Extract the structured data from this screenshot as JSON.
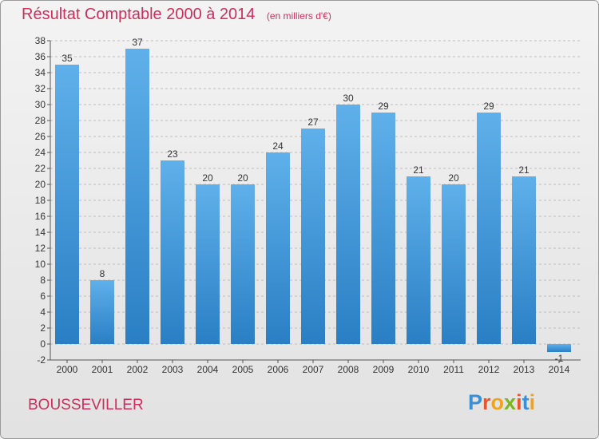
{
  "header": {
    "title": "Résultat Comptable 2000 à 2014",
    "subtitle": "(en milliers d'€)"
  },
  "footer": {
    "commune": "BOUSSEVILLER",
    "logo_text": "Proxiti",
    "logo_colors": [
      "#3a8fd6",
      "#e8562d",
      "#f2a31d",
      "#7ab51d",
      "#e8562d",
      "#3a8fd6",
      "#f2a31d"
    ]
  },
  "colors": {
    "accent": "#cc2f5c",
    "bar_top": "#5fb0ea",
    "bar_bottom": "#2a7fc4",
    "axis_text": "#333333",
    "grid": "#bdbdbd"
  },
  "chart_data": {
    "type": "bar",
    "categories": [
      "2000",
      "2001",
      "2002",
      "2003",
      "2004",
      "2005",
      "2006",
      "2007",
      "2008",
      "2009",
      "2010",
      "2011",
      "2012",
      "2013",
      "2014"
    ],
    "values": [
      35,
      8,
      37,
      23,
      20,
      20,
      24,
      27,
      30,
      29,
      21,
      20,
      29,
      21,
      -1
    ],
    "labels": [
      "35",
      "8",
      "37",
      "23",
      "20",
      "20",
      "24",
      "27",
      "30",
      "29",
      "21",
      "20",
      "29",
      "21",
      "-1"
    ],
    "title": "Résultat Comptable 2000 à 2014",
    "xlabel": "",
    "ylabel": "",
    "ylim": [
      -2,
      38
    ],
    "yticks": [
      -2,
      0,
      2,
      4,
      6,
      8,
      10,
      12,
      14,
      16,
      18,
      20,
      22,
      24,
      26,
      28,
      30,
      32,
      34,
      36,
      38
    ],
    "grid": true,
    "legend": "none"
  }
}
